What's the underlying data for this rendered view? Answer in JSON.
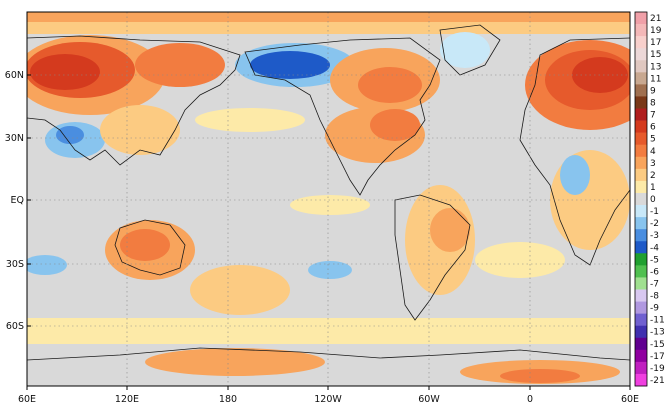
{
  "map": {
    "background_color": "#d9d9d9",
    "lat_labels": [
      "60N",
      "30N",
      "EQ",
      "30S",
      "60S"
    ],
    "lon_labels": [
      "60E",
      "120E",
      "180",
      "120W",
      "60W",
      "0",
      "60E"
    ]
  },
  "colorbar": {
    "levels": [
      {
        "label": "21",
        "color": "#f0a0a8"
      },
      {
        "label": "19",
        "color": "#f4b8b8"
      },
      {
        "label": "17",
        "color": "#f8d0cc"
      },
      {
        "label": "15",
        "color": "#ecd8d8"
      },
      {
        "label": "13",
        "color": "#e0c8c0"
      },
      {
        "label": "11",
        "color": "#c8a890"
      },
      {
        "label": "9",
        "color": "#a07050"
      },
      {
        "label": "8",
        "color": "#7a3818"
      },
      {
        "label": "7",
        "color": "#b01e1e"
      },
      {
        "label": "6",
        "color": "#d43a1e"
      },
      {
        "label": "5",
        "color": "#e65a2c"
      },
      {
        "label": "4",
        "color": "#f27c40"
      },
      {
        "label": "3",
        "color": "#f8a45c"
      },
      {
        "label": "2",
        "color": "#fccb82"
      },
      {
        "label": "1",
        "color": "#fdeaa8"
      },
      {
        "label": "0",
        "color": "#d9d9d9"
      },
      {
        "label": "-1",
        "color": "#c8e8f8"
      },
      {
        "label": "-2",
        "color": "#88c4ee"
      },
      {
        "label": "-3",
        "color": "#4a8ee0"
      },
      {
        "label": "-4",
        "color": "#1e5ac8"
      },
      {
        "label": "-5",
        "color": "#20a030"
      },
      {
        "label": "-6",
        "color": "#50c050"
      },
      {
        "label": "-7",
        "color": "#a0e090"
      },
      {
        "label": "-8",
        "color": "#d8c8f0"
      },
      {
        "label": "-9",
        "color": "#b098e0"
      },
      {
        "label": "-11",
        "color": "#7060d0"
      },
      {
        "label": "-13",
        "color": "#4030b0"
      },
      {
        "label": "-15",
        "color": "#600090"
      },
      {
        "label": "-17",
        "color": "#9000a0"
      },
      {
        "label": "-19",
        "color": "#c020c0"
      },
      {
        "label": "-21",
        "color": "#f040e0"
      }
    ]
  },
  "anomaly_colors": {
    "warm1": "#fdeaa8",
    "warm2": "#fccb82",
    "warm3": "#f8a45c",
    "warm4": "#f27c40",
    "warm5": "#e65a2c",
    "warm6": "#d43a1e",
    "cool1": "#c8e8f8",
    "cool2": "#88c4ee",
    "cool3": "#4a8ee0",
    "cool4": "#1e5ac8"
  }
}
